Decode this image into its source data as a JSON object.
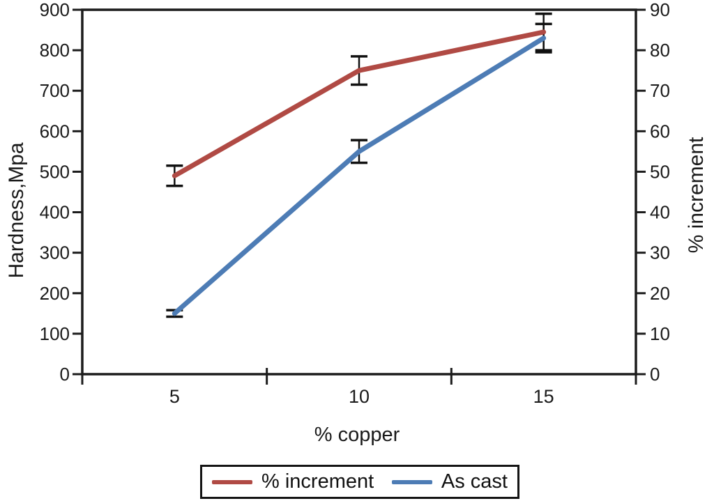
{
  "chart_data": {
    "type": "line",
    "title": "",
    "xlabel": "% copper",
    "ylabel_left": "Hardness,Mpa",
    "ylabel_right": "% increment",
    "x_tick_labels": [
      "5",
      "10",
      "15"
    ],
    "axes": {
      "left": {
        "min": 0,
        "max": 900,
        "ticks": [
          0,
          100,
          200,
          300,
          400,
          500,
          600,
          700,
          800,
          900
        ]
      },
      "right": {
        "min": 0,
        "max": 90,
        "ticks": [
          0,
          10,
          20,
          30,
          40,
          50,
          60,
          70,
          80,
          90
        ]
      }
    },
    "series": [
      {
        "name": "% increment",
        "axis": "right",
        "color": "#b04a44",
        "x": [
          5,
          10,
          15
        ],
        "values": [
          49,
          75,
          84.5
        ],
        "errors": [
          2.5,
          3.5,
          4.5
        ]
      },
      {
        "name": "As cast",
        "axis": "left",
        "color": "#4d7cb5",
        "x": [
          5,
          10,
          15
        ],
        "values": [
          150,
          550,
          830
        ],
        "errors": [
          8,
          28,
          35
        ]
      }
    ],
    "legend": {
      "position": "bottom",
      "border_color": "#141414"
    },
    "grid": false,
    "text_color": "#1a1a1a",
    "axis_color": "#1c1c1c",
    "errorbar_color": "#111111"
  }
}
